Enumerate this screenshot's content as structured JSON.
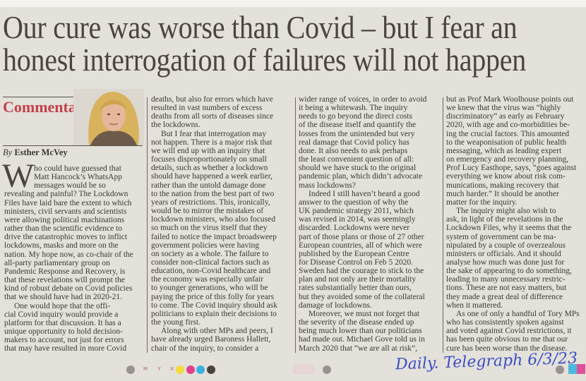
{
  "headline": {
    "line1": "Our cure was worse than Covid – but I fear an",
    "line2": "honest interrogation of failures will not happen"
  },
  "section_label": "Commentary",
  "byline": {
    "prefix": "By",
    "author": "Esther McVey"
  },
  "colors": {
    "section": "#c4404a",
    "text": "#3b3834",
    "paper": "#e4e1da",
    "handwriting": "#3a4fc4"
  },
  "drop_cap": "W",
  "columns": [
    {
      "paragraphs": [
        {
          "lines": [
            "ho could have guessed that",
            "Matt Hancock’s WhatsApp",
            "messages would be so",
            "revealing and painful? The Lockdown",
            "Files have laid bare the extent to which",
            "ministers, civil servants and scientists",
            "were allowing political machinations",
            "rather than the scientific evidence to",
            "drive the catastrophic moves to inflict",
            "lockdowns, masks and more on the",
            "nation. My hope now, as co-chair of the",
            "all-party parliamentary group on",
            "Pandemic Response and Recovery, is",
            "that these revelations will prompt the",
            "kind of robust debate on Covid policies",
            "that we should have had in 2020-21."
          ]
        },
        {
          "lines": [
            "One would hope that the offi-",
            "cial Covid inquiry would provide a",
            "platform for that discussion. It has a",
            "unique opportunity to hold decision-",
            "makers to account, not just for errors",
            "that may have resulted in more Covid"
          ]
        }
      ]
    },
    {
      "paragraphs": [
        {
          "lines": [
            "deaths, but also for errors which have",
            "resulted in vast numbers of excess",
            "deaths from all sorts of diseases since",
            "the lockdowns."
          ],
          "continued": true
        },
        {
          "lines": [
            "But I fear that interrogation may",
            "not happen. There is a major risk that",
            "we will end up with an inquiry that",
            "focuses disproportionately on small",
            "details, such as whether a lockdown",
            "should have happened a week earlier,",
            "rather than the untold damage done",
            "to the nation from the best part of two",
            "years of restrictions. This, ironically,",
            "would be to mirror the mistakes of",
            "lockdown ministers, who also focused",
            "so much on the virus itself that they",
            "failed to notice the impact broadsweep",
            "government policies were having",
            "on society as a whole. The failure to",
            "consider non-clinical factors such as",
            "education, non-Covid healthcare and",
            "the economy was especially unfair",
            "to younger generations, who will be",
            "paying the price of this folly for years",
            "to come. The Covid inquiry should ask",
            "politicians to explain their decisions to",
            "the young first."
          ]
        },
        {
          "lines": [
            "Along with other MPs and peers, I",
            "have already urged Baroness Hallett,",
            "chair of the inquiry, to consider a"
          ]
        }
      ]
    },
    {
      "paragraphs": [
        {
          "lines": [
            "wider range of voices, in order to avoid",
            "it being a whitewash. The inquiry",
            "needs to go beyond the direct costs",
            "of the disease itself and quantify the",
            "losses from the unintended but very",
            "real damage that Covid policy has",
            "done. It also needs to ask perhaps",
            "the least convenient question of all:",
            "should we have stuck to the original",
            "pandemic plan, which didn’t advocate",
            "mass lockdowns?"
          ],
          "continued": true
        },
        {
          "lines": [
            "Indeed I still haven’t heard a good",
            "answer to the question of why the",
            "UK pandemic strategy 2011, which",
            "was revised in 2014, was seemingly",
            "discarded. Lockdowns were never",
            "part of those plans or those of 27 other",
            "European countries, all of which were",
            "published by the European Centre",
            "for Disease Control on Feb 5 2020.",
            "Sweden had the courage to stick to the",
            "plan and not only are their mortality",
            "rates substantially better than ours,",
            "but they avoided some of the collateral",
            "damage of lockdowns."
          ]
        },
        {
          "lines": [
            "Moreover, we must not forget that",
            "the severity of the disease ended up",
            "being much lower than our politicians",
            "had made out. Michael Gove told us in",
            "March 2020 that “we are all at risk”,"
          ]
        }
      ]
    },
    {
      "paragraphs": [
        {
          "lines": [
            "but as Prof Mark Woolhouse points out",
            "we knew that the virus was “highly",
            "discriminatory” as early as February",
            "2020, with age and co-morbidities be-",
            "ing the crucial factors. This amounted",
            "to the weaponisation of public health",
            "messaging, which as leading expert",
            "on emergency and recovery planning,",
            "Prof Lucy Easthope, says, “goes against",
            "everything we know about risk com-",
            "munications, making recovery that",
            "much harder.” It should be another",
            "matter for the inquiry."
          ],
          "continued": true
        },
        {
          "lines": [
            "The inquiry might also wish to",
            "ask, in light of the revelations in the",
            "Lockdown Files, why it seems that the",
            "system of government can be ma-",
            "nipulated by a couple of overzealous",
            "ministers or officials. And it should",
            "analyse how much was done just for",
            "the sake of appearing to do something,",
            "leading to many unnecessary restric-",
            "tions. These are not easy matters, but",
            "they made a great deal of difference",
            "when it mattered."
          ]
        },
        {
          "lines": [
            "As one of only a handful of Tory MPs",
            "who has consistently spoken against",
            "and voted against Covid restrictions, it",
            "has been quite obvious to me that our",
            "cure has been worse than the disease."
          ]
        }
      ]
    }
  ],
  "registration_marks": "M Y K",
  "handwritten_note": "Daily. Telegraph 6/3/23"
}
